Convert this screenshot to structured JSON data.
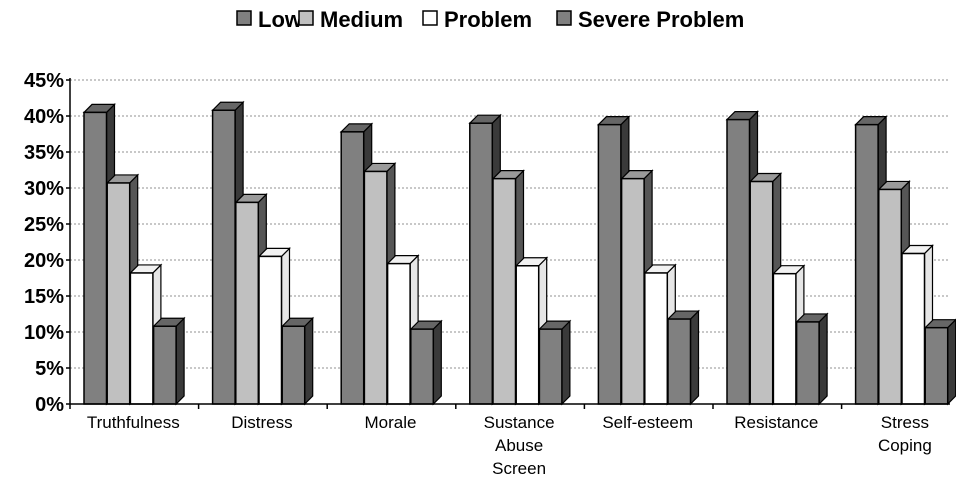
{
  "chart_data": {
    "type": "bar",
    "title": "",
    "xlabel": "",
    "ylabel": "",
    "ylim": [
      0,
      45
    ],
    "y_ticks": [
      "0%",
      "5%",
      "10%",
      "15%",
      "20%",
      "25%",
      "30%",
      "35%",
      "40%",
      "45%"
    ],
    "grid": true,
    "legend_position": "top",
    "categories": [
      [
        "Truthfulness"
      ],
      [
        "Distress"
      ],
      [
        "Morale"
      ],
      [
        "Sustance",
        "Abuse",
        "Screen"
      ],
      [
        "Self-esteem"
      ],
      [
        "Resistance"
      ],
      [
        "Stress",
        "Coping"
      ]
    ],
    "series": [
      {
        "name": "Low",
        "color": "#808080",
        "values": [
          40.5,
          40.8,
          37.8,
          39.0,
          38.8,
          39.5,
          38.8
        ]
      },
      {
        "name": "Medium",
        "color": "#c0c0c0",
        "values": [
          30.7,
          28.0,
          32.3,
          31.3,
          31.3,
          30.9,
          29.8
        ]
      },
      {
        "name": "Problem",
        "color": "#ffffff",
        "values": [
          18.2,
          20.5,
          19.5,
          19.2,
          18.2,
          18.1,
          20.9
        ]
      },
      {
        "name": "Severe Problem",
        "color": "#808080",
        "values": [
          10.8,
          10.8,
          10.4,
          10.4,
          11.8,
          11.4,
          10.6
        ]
      }
    ]
  }
}
